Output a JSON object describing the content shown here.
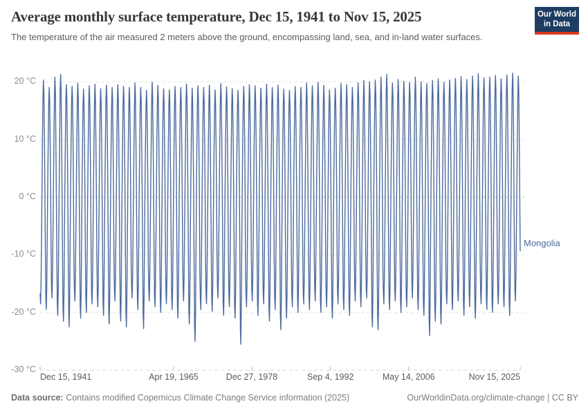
{
  "header": {
    "title": "Average monthly surface temperature, Dec 15, 1941 to Nov 15, 2025",
    "subtitle": "The temperature of the air measured 2 meters above the ground, encompassing land, sea, and in-land water surfaces.",
    "logo": {
      "line1": "Our World",
      "line2": "in Data",
      "bg_color": "#1d3d63",
      "accent_color": "#dc3a22"
    }
  },
  "chart_data": {
    "type": "line",
    "title": "Average monthly surface temperature, Dec 15, 1941 to Nov 15, 2025",
    "x_axis": {
      "tick_labels": [
        "Dec 15, 1941",
        "Apr 19, 1965",
        "Dec 27, 1978",
        "Sep 4, 1992",
        "May 14, 2006",
        "Nov 15, 2025"
      ],
      "tick_month_index": [
        0,
        280,
        444,
        609,
        773,
        1007
      ],
      "start": "1941-12-15",
      "end": "2025-11-15"
    },
    "y_axis": {
      "tick_labels": [
        "20 °C",
        "10 °C",
        "0 °C",
        "-10 °C",
        "-20 °C",
        "-30 °C"
      ],
      "tick_values": [
        20,
        10,
        0,
        -10,
        -20,
        -30
      ],
      "ylim": [
        -30,
        22
      ],
      "unit": "°C"
    },
    "grid": true,
    "legend_position": "end-of-line-label",
    "series": [
      {
        "name": "Mongolia",
        "color": "#4c6a9c"
      }
    ],
    "seasonal_shape_jan_dec": [
      -1.0,
      -0.78,
      -0.34,
      0.1,
      0.5,
      0.85,
      1.0,
      0.88,
      0.52,
      0.05,
      -0.52,
      -0.9
    ],
    "annual_extremes": {
      "first_summer_year": 1942,
      "winter_min": [
        -18.5,
        -19.5,
        -17.5,
        -20.5,
        -21.5,
        -22.5,
        -18,
        -21,
        -20,
        -18.5,
        -19,
        -20.5,
        -22,
        -18,
        -21.5,
        -22.5,
        -17.5,
        -19.5,
        -22.8,
        -18,
        -19,
        -20,
        -18.5,
        -19.5,
        -21,
        -18,
        -22,
        -25,
        -19.5,
        -18.5,
        -19.8,
        -17.5,
        -20.5,
        -19,
        -21,
        -25.5,
        -19,
        -18,
        -20.5,
        -18.5,
        -21.5,
        -19.5,
        -23,
        -21,
        -19,
        -20,
        -18.5,
        -19.5,
        -18,
        -20,
        -19,
        -21,
        -18.5,
        -19.5,
        -20.5,
        -18,
        -19,
        -17.5,
        -22.5,
        -23,
        -18.5,
        -19.5,
        -18,
        -20,
        -19,
        -17.5,
        -19.5,
        -20.5,
        -24,
        -21.5,
        -22,
        -18.5,
        -19.5,
        -18,
        -20.5,
        -19,
        -21,
        -18.5,
        -19.5,
        -20,
        -18.5,
        -19,
        -20.5,
        -18
      ],
      "summer_max": [
        20.3,
        19,
        20.8,
        21.3,
        19.5,
        19.2,
        19.8,
        18.7,
        19.3,
        19.6,
        18.8,
        19.4,
        19,
        19.5,
        19.2,
        19,
        19.8,
        19,
        18.5,
        19.9,
        19.4,
        18.8,
        18.6,
        19.2,
        19,
        19.6,
        18.9,
        19.3,
        19,
        19.4,
        18.6,
        19.7,
        19.1,
        18.8,
        18.5,
        19.2,
        19.5,
        19.3,
        18.9,
        19.6,
        19,
        19.4,
        18.7,
        18.5,
        19.2,
        19,
        19.8,
        19.3,
        19.9,
        19.4,
        18.6,
        18.9,
        19.7,
        19.5,
        19,
        19.8,
        20.2,
        20,
        20.3,
        20.8,
        21.3,
        19.8,
        20.4,
        20.1,
        19.9,
        20.8,
        20,
        19.7,
        20.2,
        20.5,
        19.9,
        20.3,
        20.6,
        20.9,
        20.4,
        21,
        21.4,
        20.7,
        20.8,
        21.1,
        20.5,
        21.2,
        21.5,
        21
      ]
    }
  },
  "footer": {
    "data_source_label": "Data source:",
    "data_source_text": "Contains modified Copernicus Climate Change Service information (2025)",
    "attribution_link": "OurWorldinData.org/climate-change",
    "attribution_separator": "|",
    "attribution_license": "CC BY"
  }
}
